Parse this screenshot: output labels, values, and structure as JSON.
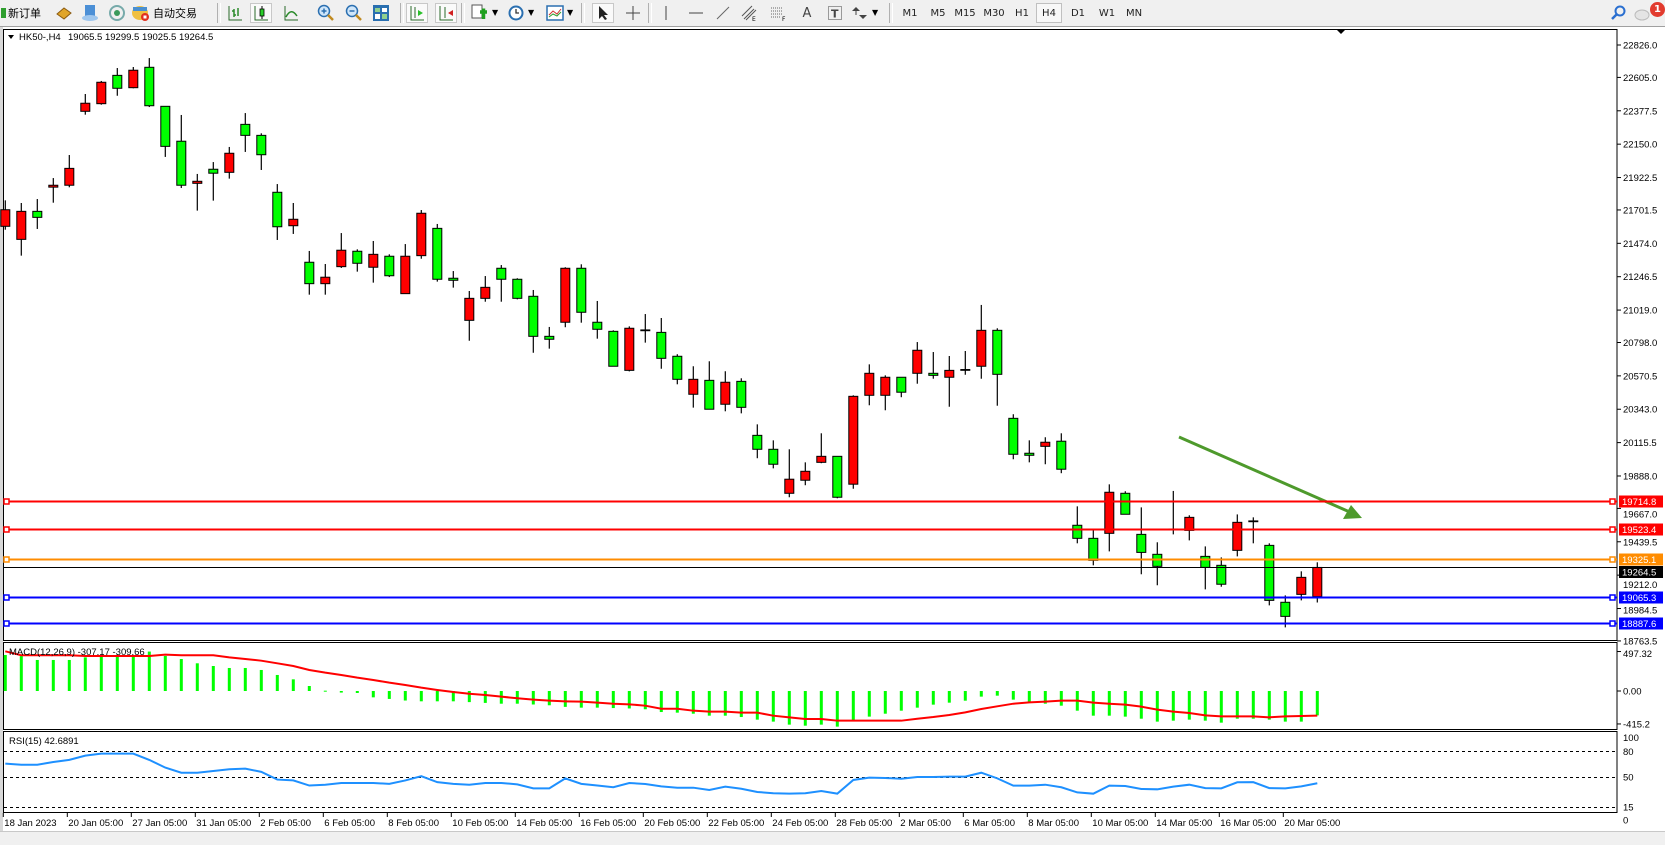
{
  "toolbar": {
    "new_order_label": "新订单",
    "auto_trading_label": "自动交易",
    "icons": [
      "new-order-icon",
      "market-watch-icon",
      "data-window-icon",
      "navigator-icon",
      "auto-trading-icon",
      "bar-chart-icon",
      "candlestick-icon",
      "line-chart-icon",
      "zoom-in-icon",
      "zoom-out-icon",
      "tile-windows-icon",
      "auto-scroll-icon",
      "chart-shift-icon",
      "new-chart-icon",
      "periods-clock-icon",
      "templates-icon",
      "cursor-icon",
      "crosshair-icon",
      "vertical-line-icon",
      "horizontal-line-icon",
      "trendline-icon",
      "equidistant-channel-icon",
      "fibonacci-icon",
      "text-icon",
      "text-label-icon",
      "arrows-icon",
      "search-icon",
      "notifications-icon"
    ],
    "timeframes": [
      "M1",
      "M5",
      "M15",
      "M30",
      "H1",
      "H4",
      "D1",
      "W1",
      "MN"
    ],
    "selected_timeframe": "H4",
    "notification_count": "1"
  },
  "chart_data": {
    "type": "candlestick",
    "symbol_header": "HK50-,H4",
    "header_ohlc": "19065.5 19299.5 19025.5 19264.5",
    "up_color": "#ff0000",
    "down_color": "#00ff00",
    "ylim": [
      18770,
      22935
    ],
    "y_ticks": [
      "22826.0",
      "22605.0",
      "22377.5",
      "22150.0",
      "21922.5",
      "21701.5",
      "21474.0",
      "21246.5",
      "21019.0",
      "20798.0",
      "20570.5",
      "20343.0",
      "20115.5",
      "19888.0",
      "19667.0",
      "19439.5",
      "19212.0",
      "18984.5",
      "18763.5"
    ],
    "x_tick_labels": [
      "18 Jan 2023",
      "20 Jan 05:00",
      "27 Jan 05:00",
      "31 Jan 05:00",
      "2 Feb 05:00",
      "6 Feb 05:00",
      "8 Feb 05:00",
      "10 Feb 05:00",
      "14 Feb 05:00",
      "16 Feb 05:00",
      "20 Feb 05:00",
      "22 Feb 05:00",
      "24 Feb 05:00",
      "28 Feb 05:00",
      "2 Mar 05:00",
      "6 Mar 05:00",
      "8 Mar 05:00",
      "10 Mar 05:00",
      "14 Mar 05:00",
      "16 Mar 05:00",
      "20 Mar 05:00"
    ],
    "x_tick_every_n_bars": 4,
    "ohlc": [
      [
        21590,
        21767,
        21567,
        21703
      ],
      [
        21501,
        21749,
        21390,
        21692
      ],
      [
        21692,
        21776,
        21572,
        21651
      ],
      [
        21857,
        21919,
        21751,
        21870
      ],
      [
        21870,
        22076,
        21856,
        21985
      ],
      [
        22374,
        22492,
        22351,
        22429
      ],
      [
        22426,
        22581,
        22419,
        22572
      ],
      [
        22619,
        22669,
        22480,
        22531
      ],
      [
        22535,
        22676,
        22531,
        22654
      ],
      [
        22674,
        22737,
        22403,
        22412
      ],
      [
        22408,
        22408,
        22063,
        22135
      ],
      [
        22170,
        22349,
        21851,
        21870
      ],
      [
        21883,
        21947,
        21697,
        21897
      ],
      [
        21979,
        22028,
        21765,
        21952
      ],
      [
        21958,
        22131,
        21915,
        22088
      ],
      [
        22285,
        22362,
        22097,
        22210
      ],
      [
        22210,
        22224,
        21974,
        22078
      ],
      [
        21822,
        21878,
        21497,
        21587
      ],
      [
        21594,
        21749,
        21538,
        21638
      ],
      [
        21345,
        21422,
        21124,
        21199
      ],
      [
        21199,
        21333,
        21124,
        21243
      ],
      [
        21315,
        21544,
        21306,
        21427
      ],
      [
        21420,
        21433,
        21281,
        21338
      ],
      [
        21311,
        21490,
        21206,
        21399
      ],
      [
        21386,
        21399,
        21244,
        21253
      ],
      [
        21131,
        21469,
        21131,
        21386
      ],
      [
        21390,
        21701,
        21369,
        21679
      ],
      [
        21576,
        21606,
        21213,
        21229
      ],
      [
        21236,
        21285,
        21172,
        21222
      ],
      [
        20949,
        21149,
        20810,
        21099
      ],
      [
        21099,
        21251,
        21076,
        21174
      ],
      [
        21304,
        21326,
        21076,
        21229
      ],
      [
        21229,
        21236,
        21092,
        21099
      ],
      [
        21113,
        21156,
        20728,
        20840
      ],
      [
        20840,
        20904,
        20756,
        20820
      ],
      [
        20936,
        21311,
        20902,
        21304
      ],
      [
        21304,
        21331,
        20933,
        21004
      ],
      [
        20936,
        21081,
        20824,
        20888
      ],
      [
        20874,
        20881,
        20636,
        20636
      ],
      [
        20608,
        20908,
        20601,
        20895
      ],
      [
        20881,
        20992,
        20797,
        20877
      ],
      [
        20867,
        20965,
        20619,
        20690
      ],
      [
        20704,
        20718,
        20513,
        20547
      ],
      [
        20445,
        20636,
        20354,
        20547
      ],
      [
        20540,
        20670,
        20343,
        20343
      ],
      [
        20377,
        20602,
        20329,
        20527
      ],
      [
        20533,
        20554,
        20315,
        20356
      ],
      [
        20165,
        20240,
        20009,
        20070
      ],
      [
        20070,
        20131,
        19940,
        19968
      ],
      [
        19770,
        20070,
        19743,
        19866
      ],
      [
        19859,
        19981,
        19825,
        19920
      ],
      [
        19981,
        20179,
        19975,
        20022
      ],
      [
        20022,
        20022,
        19736,
        19743
      ],
      [
        19832,
        20438,
        19801,
        20431
      ],
      [
        20438,
        20649,
        20370,
        20588
      ],
      [
        20438,
        20574,
        20336,
        20561
      ],
      [
        20561,
        20561,
        20425,
        20459
      ],
      [
        20588,
        20801,
        20517,
        20745
      ],
      [
        20588,
        20733,
        20551,
        20574
      ],
      [
        20561,
        20706,
        20360,
        20608
      ],
      [
        20611,
        20740,
        20578,
        20608
      ],
      [
        20636,
        21054,
        20551,
        20881
      ],
      [
        20881,
        20895,
        20367,
        20581
      ],
      [
        20281,
        20309,
        20002,
        20036
      ],
      [
        20043,
        20131,
        19981,
        20029
      ],
      [
        20090,
        20152,
        19968,
        20118
      ],
      [
        20125,
        20179,
        19907,
        19934
      ],
      [
        19552,
        19681,
        19429,
        19463
      ],
      [
        19463,
        19524,
        19279,
        19313
      ],
      [
        19497,
        19831,
        19374,
        19777
      ],
      [
        19770,
        19784,
        19627,
        19627
      ],
      [
        19490,
        19674,
        19218,
        19367
      ],
      [
        19354,
        19436,
        19143,
        19272
      ],
      [
        19524,
        19786,
        19490,
        19517
      ],
      [
        19517,
        19620,
        19449,
        19606
      ],
      [
        19340,
        19408,
        19115,
        19265
      ],
      [
        19279,
        19333,
        19133,
        19150
      ],
      [
        19381,
        19626,
        19340,
        19572
      ],
      [
        19579,
        19606,
        19429,
        19579
      ],
      [
        19415,
        19429,
        19006,
        19040
      ],
      [
        19027,
        19074,
        18856,
        18931
      ],
      [
        19081,
        19238,
        19040,
        19197
      ],
      [
        19065.5,
        19299.5,
        19025.5,
        19264.5
      ]
    ],
    "horizontal_levels": [
      {
        "value": "19714.8",
        "color": "#ff0000"
      },
      {
        "value": "19523.4",
        "color": "#ff0000"
      },
      {
        "value": "19325.1",
        "color": "#ff8c00"
      },
      {
        "value": "19065.3",
        "color": "#0000ff"
      },
      {
        "value": "18887.6",
        "color": "#0000ff"
      }
    ],
    "current_price": {
      "value": "19264.5",
      "color": "#000000"
    },
    "trend_arrow_color": "#4e9a2c",
    "macd": {
      "label": "MACD(12,26,9) -307.17 -309.66",
      "ylim": [
        -491,
        617
      ],
      "axis_labels": [
        "497.32",
        "0.00",
        "-415.2"
      ],
      "histogram_color": "#00ff00",
      "signal_color": "#ff0000",
      "histogram": [
        454,
        440,
        391,
        391,
        391,
        424,
        433,
        454,
        454,
        497,
        441,
        403,
        349,
        315,
        290,
        290,
        265,
        202,
        147,
        63,
        4,
        -20,
        -25,
        -80,
        -100,
        -120,
        -130,
        -130,
        -130,
        -140,
        -150,
        -160,
        -160,
        -170,
        -180,
        -200,
        -210,
        -210,
        -215,
        -220,
        -230,
        -265,
        -273,
        -286,
        -311,
        -311,
        -328,
        -361,
        -386,
        -424,
        -437,
        -424,
        -449,
        -374,
        -323,
        -286,
        -248,
        -210,
        -172,
        -147,
        -122,
        -71,
        -59,
        -109,
        -134,
        -160,
        -185,
        -248,
        -311,
        -311,
        -323,
        -349,
        -386,
        -374,
        -361,
        -374,
        -399,
        -349,
        -349,
        -361,
        -386,
        -386,
        -307.17
      ],
      "signal": [
        500,
        450,
        450,
        450,
        450,
        441,
        441,
        441,
        441,
        441,
        458,
        450,
        450,
        450,
        424,
        403,
        382,
        349,
        315,
        265,
        231,
        202,
        168,
        139,
        105,
        76,
        42,
        13,
        -13,
        -34,
        -50,
        -71,
        -92,
        -109,
        -122,
        -130,
        -134,
        -147,
        -160,
        -168,
        -185,
        -223,
        -223,
        -248,
        -260,
        -260,
        -273,
        -273,
        -311,
        -332,
        -353,
        -353,
        -374,
        -374,
        -374,
        -374,
        -374,
        -349,
        -328,
        -302,
        -269,
        -227,
        -193,
        -160,
        -143,
        -134,
        -122,
        -122,
        -147,
        -160,
        -172,
        -197,
        -235,
        -260,
        -277,
        -307,
        -319,
        -319,
        -319,
        -332,
        -320,
        -315,
        -309.66
      ]
    },
    "rsi": {
      "label": "RSI(15) 42.6891",
      "ylim": [
        0,
        100
      ],
      "levels": [
        80,
        50,
        15
      ],
      "axis_labels": [
        "100",
        "80",
        "50",
        "15",
        "0"
      ],
      "color": "#1e90ff",
      "values": [
        65.6,
        64.4,
        64.4,
        67.5,
        70,
        75,
        77.3,
        77.3,
        77.3,
        70,
        61,
        55,
        55,
        57,
        59,
        59.8,
        56,
        47,
        46,
        40,
        41,
        43,
        43,
        43,
        42,
        46,
        51,
        44,
        42,
        41,
        43,
        43,
        41.4,
        36.7,
        36.7,
        48.4,
        42,
        40,
        38,
        43,
        41.8,
        39,
        37.5,
        37.5,
        34.8,
        38.7,
        36.3,
        32.5,
        31,
        30.5,
        31,
        33.6,
        30.5,
        46.5,
        49.2,
        48.8,
        48,
        50,
        50,
        50.4,
        50.4,
        55,
        48.4,
        39.9,
        39.9,
        41,
        38,
        32,
        30.5,
        39.9,
        39.5,
        36,
        35.6,
        38.7,
        41,
        37,
        36.7,
        43.8,
        44,
        37,
        36.7,
        39,
        42.6891
      ]
    }
  }
}
